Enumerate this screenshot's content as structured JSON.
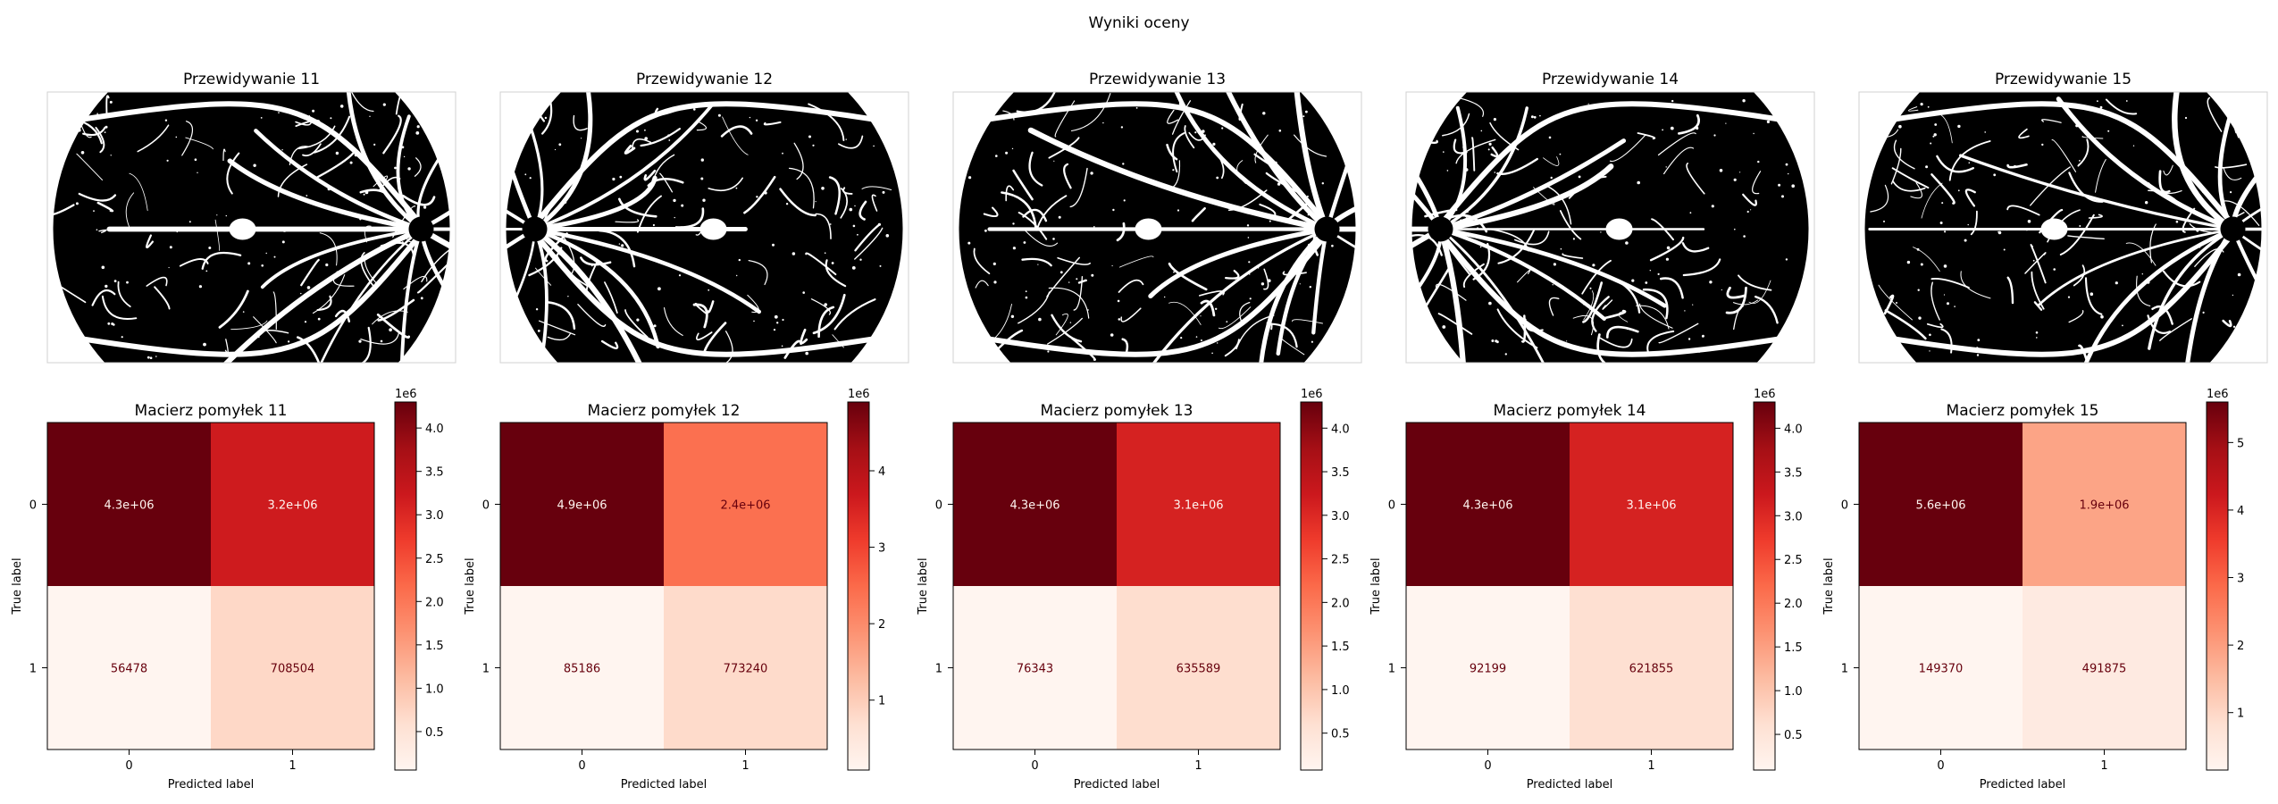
{
  "figure": {
    "suptitle": "Wyniki oceny"
  },
  "chart_data": [
    {
      "type": "image",
      "title": "Przewidywanie 11",
      "content": "binary retinal vessel segmentation mask (white vessels on black fundus disc)",
      "optic_disc_side": "right"
    },
    {
      "type": "image",
      "title": "Przewidywanie 12",
      "content": "binary retinal vessel segmentation mask (white vessels on black fundus disc)",
      "optic_disc_side": "left"
    },
    {
      "type": "image",
      "title": "Przewidywanie 13",
      "content": "binary retinal vessel segmentation mask (white vessels on black fundus disc)",
      "optic_disc_side": "right"
    },
    {
      "type": "image",
      "title": "Przewidywanie 14",
      "content": "binary retinal vessel segmentation mask (white vessels on black fundus disc)",
      "optic_disc_side": "left"
    },
    {
      "type": "image",
      "title": "Przewidywanie 15",
      "content": "binary retinal vessel segmentation mask (white vessels on black fundus disc)",
      "optic_disc_side": "right"
    },
    {
      "type": "heatmap",
      "title": "Macierz pomyłek 11",
      "xlabel": "Predicted label",
      "ylabel": "True label",
      "x_ticks": [
        "0",
        "1"
      ],
      "y_ticks": [
        "0",
        "1"
      ],
      "colormap": "Reds",
      "values": [
        [
          4300000,
          3200000
        ],
        [
          56478,
          708504
        ]
      ],
      "cell_labels": [
        [
          "4.3e+06",
          "3.2e+06"
        ],
        [
          "56478",
          "708504"
        ]
      ],
      "colorbar": {
        "ticks": [
          "0.5",
          "1.0",
          "1.5",
          "2.0",
          "2.5",
          "3.0",
          "3.5",
          "4.0"
        ],
        "tick_values": [
          0.5,
          1.0,
          1.5,
          2.0,
          2.5,
          3.0,
          3.5,
          4.0
        ],
        "offset": "1e6",
        "range": [
          0.056478,
          4.3
        ]
      }
    },
    {
      "type": "heatmap",
      "title": "Macierz pomyłek 12",
      "xlabel": "Predicted label",
      "ylabel": "True label",
      "x_ticks": [
        "0",
        "1"
      ],
      "y_ticks": [
        "0",
        "1"
      ],
      "colormap": "Reds",
      "values": [
        [
          4900000,
          2400000
        ],
        [
          85186,
          773240
        ]
      ],
      "cell_labels": [
        [
          "4.9e+06",
          "2.4e+06"
        ],
        [
          "85186",
          "773240"
        ]
      ],
      "colorbar": {
        "ticks": [
          "1",
          "2",
          "3",
          "4"
        ],
        "tick_values": [
          1,
          2,
          3,
          4
        ],
        "offset": "1e6",
        "range": [
          0.085186,
          4.9
        ]
      }
    },
    {
      "type": "heatmap",
      "title": "Macierz pomyłek 13",
      "xlabel": "Predicted label",
      "ylabel": "True label",
      "x_ticks": [
        "0",
        "1"
      ],
      "y_ticks": [
        "0",
        "1"
      ],
      "colormap": "Reds",
      "values": [
        [
          4300000,
          3100000
        ],
        [
          76343,
          635589
        ]
      ],
      "cell_labels": [
        [
          "4.3e+06",
          "3.1e+06"
        ],
        [
          "76343",
          "635589"
        ]
      ],
      "colorbar": {
        "ticks": [
          "0.5",
          "1.0",
          "1.5",
          "2.0",
          "2.5",
          "3.0",
          "3.5",
          "4.0"
        ],
        "tick_values": [
          0.5,
          1.0,
          1.5,
          2.0,
          2.5,
          3.0,
          3.5,
          4.0
        ],
        "offset": "1e6",
        "range": [
          0.076343,
          4.3
        ]
      }
    },
    {
      "type": "heatmap",
      "title": "Macierz pomyłek 14",
      "xlabel": "Predicted label",
      "ylabel": "True label",
      "x_ticks": [
        "0",
        "1"
      ],
      "y_ticks": [
        "0",
        "1"
      ],
      "colormap": "Reds",
      "values": [
        [
          4300000,
          3100000
        ],
        [
          92199,
          621855
        ]
      ],
      "cell_labels": [
        [
          "4.3e+06",
          "3.1e+06"
        ],
        [
          "92199",
          "621855"
        ]
      ],
      "colorbar": {
        "ticks": [
          "0.5",
          "1.0",
          "1.5",
          "2.0",
          "2.5",
          "3.0",
          "3.5",
          "4.0"
        ],
        "tick_values": [
          0.5,
          1.0,
          1.5,
          2.0,
          2.5,
          3.0,
          3.5,
          4.0
        ],
        "offset": "1e6",
        "range": [
          0.092199,
          4.3
        ]
      }
    },
    {
      "type": "heatmap",
      "title": "Macierz pomyłek 15",
      "xlabel": "Predicted label",
      "ylabel": "True label",
      "x_ticks": [
        "0",
        "1"
      ],
      "y_ticks": [
        "0",
        "1"
      ],
      "colormap": "Reds",
      "values": [
        [
          5600000,
          1900000
        ],
        [
          149370,
          491875
        ]
      ],
      "cell_labels": [
        [
          "5.6e+06",
          "1.9e+06"
        ],
        [
          "149370",
          "491875"
        ]
      ],
      "colorbar": {
        "ticks": [
          "1",
          "2",
          "3",
          "4",
          "5"
        ],
        "tick_values": [
          1,
          2,
          3,
          4,
          5
        ],
        "offset": "1e6",
        "range": [
          0.14937,
          5.6
        ]
      }
    }
  ]
}
